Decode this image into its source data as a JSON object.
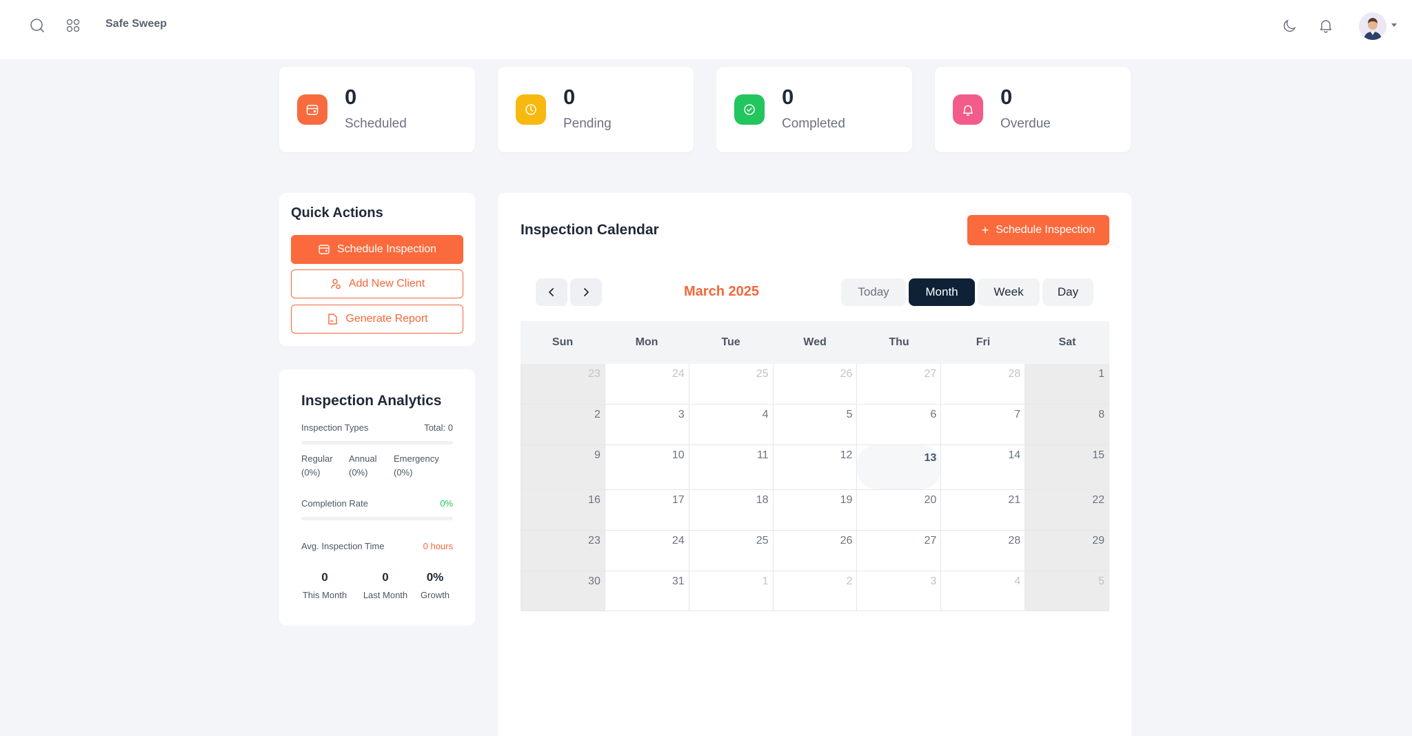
{
  "header": {
    "brand": "Safe Sweep",
    "icons": [
      "search-icon",
      "apps-icon",
      "moon-icon",
      "bell-icon",
      "avatar"
    ]
  },
  "stats": [
    {
      "value": "0",
      "label": "Scheduled",
      "color": "#f76b3e",
      "icon": "calendar-icon"
    },
    {
      "value": "0",
      "label": "Pending",
      "color": "#f7b90f",
      "icon": "clock-icon"
    },
    {
      "value": "0",
      "label": "Completed",
      "color": "#22c55e",
      "icon": "check-circle-icon"
    },
    {
      "value": "0",
      "label": "Overdue",
      "color": "#f25c8a",
      "icon": "bell-icon"
    }
  ],
  "quick_actions": {
    "title": "Quick Actions",
    "schedule": "Schedule Inspection",
    "add_client": "Add New Client",
    "generate_report": "Generate Report"
  },
  "analytics": {
    "title": "Inspection Analytics",
    "types_label": "Inspection Types",
    "total": "Total: 0",
    "types": [
      {
        "name": "Regular",
        "pct": "(0%)"
      },
      {
        "name": "Annual",
        "pct": "(0%)"
      },
      {
        "name": "Emergency",
        "pct": "(0%)"
      }
    ],
    "completion_label": "Completion Rate",
    "completion_value": "0%",
    "completion_fraction": 0,
    "avg_label": "Avg. Inspection Time",
    "avg_value": "0 hours",
    "this_month_value": "0",
    "this_month_label": "This Month",
    "last_month_value": "0",
    "last_month_label": "Last Month",
    "growth_value": "0%",
    "growth_label": "Growth"
  },
  "calendar": {
    "title": "Inspection Calendar",
    "schedule_button": "Schedule Inspection",
    "month": "March 2025",
    "views": {
      "today": "Today",
      "month": "Month",
      "week": "Week",
      "day": "Day"
    },
    "active_view": "Month",
    "weekdays": [
      "Sun",
      "Mon",
      "Tue",
      "Wed",
      "Thu",
      "Fri",
      "Sat"
    ],
    "weeks": [
      [
        {
          "d": "23",
          "o": true
        },
        {
          "d": "24",
          "o": true
        },
        {
          "d": "25",
          "o": true
        },
        {
          "d": "26",
          "o": true
        },
        {
          "d": "27",
          "o": true
        },
        {
          "d": "28",
          "o": true
        },
        {
          "d": "1"
        }
      ],
      [
        {
          "d": "2"
        },
        {
          "d": "3"
        },
        {
          "d": "4"
        },
        {
          "d": "5"
        },
        {
          "d": "6"
        },
        {
          "d": "7"
        },
        {
          "d": "8"
        }
      ],
      [
        {
          "d": "9"
        },
        {
          "d": "10"
        },
        {
          "d": "11"
        },
        {
          "d": "12"
        },
        {
          "d": "13",
          "today": true
        },
        {
          "d": "14"
        },
        {
          "d": "15"
        }
      ],
      [
        {
          "d": "16"
        },
        {
          "d": "17"
        },
        {
          "d": "18"
        },
        {
          "d": "19"
        },
        {
          "d": "20"
        },
        {
          "d": "21"
        },
        {
          "d": "22"
        }
      ],
      [
        {
          "d": "23"
        },
        {
          "d": "24"
        },
        {
          "d": "25"
        },
        {
          "d": "26"
        },
        {
          "d": "27"
        },
        {
          "d": "28"
        },
        {
          "d": "29"
        }
      ],
      [
        {
          "d": "30"
        },
        {
          "d": "31"
        },
        {
          "d": "1",
          "o": true
        },
        {
          "d": "2",
          "o": true
        },
        {
          "d": "3",
          "o": true
        },
        {
          "d": "4",
          "o": true
        },
        {
          "d": "5",
          "o": true
        }
      ]
    ]
  }
}
